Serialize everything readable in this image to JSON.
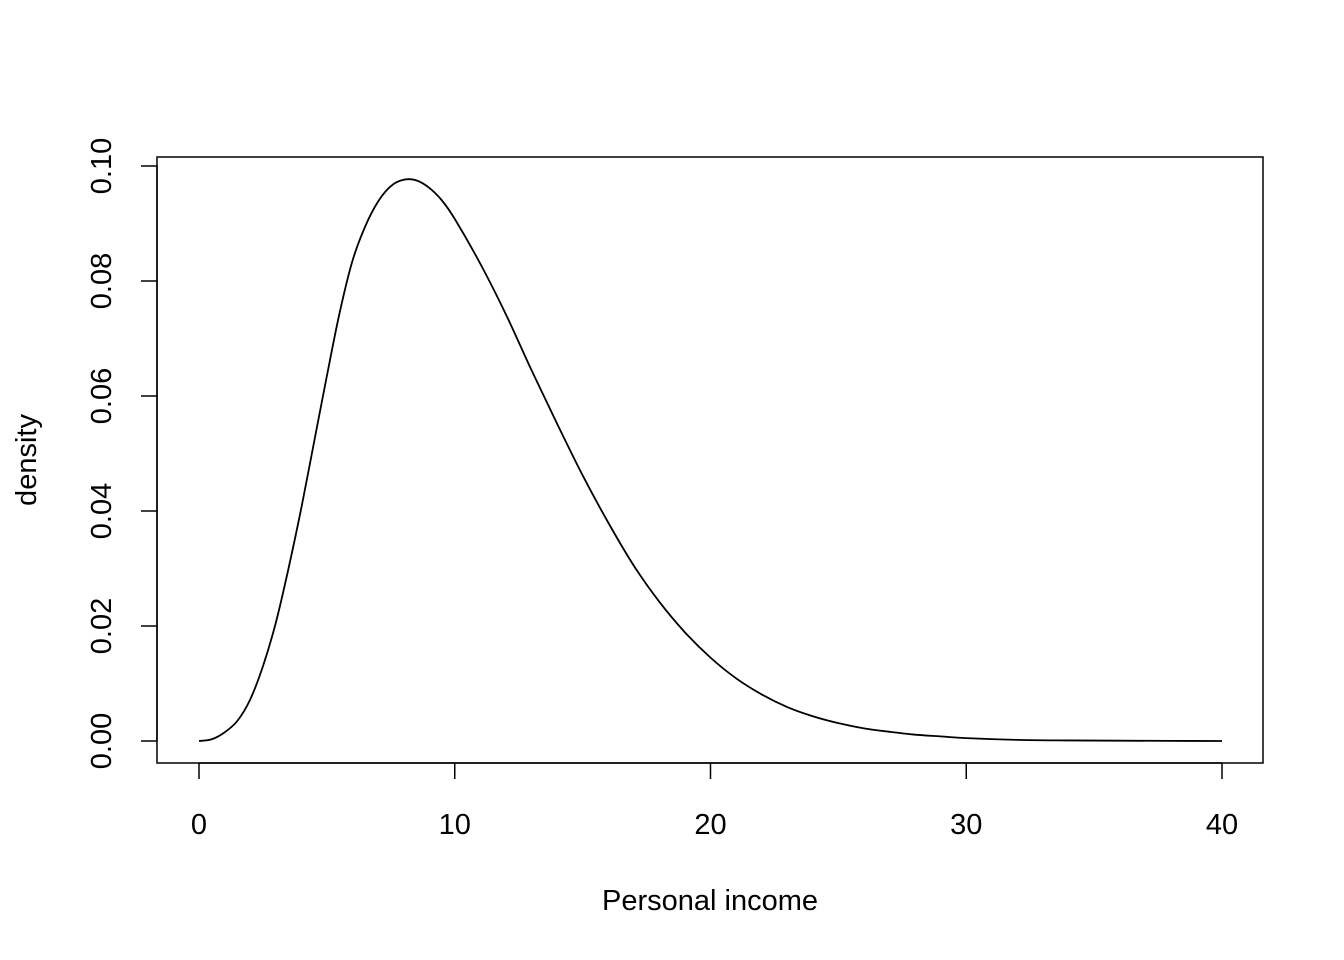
{
  "chart_data": {
    "type": "line",
    "title": "",
    "xlabel": "Personal income",
    "ylabel": "density",
    "xlim": [
      0,
      40
    ],
    "ylim": [
      0,
      0.1
    ],
    "x_ticks": [
      0,
      10,
      20,
      30,
      40
    ],
    "x_tick_labels": [
      "0",
      "10",
      "20",
      "30",
      "40"
    ],
    "y_ticks": [
      0,
      0.02,
      0.04,
      0.06,
      0.08,
      0.1
    ],
    "y_tick_labels": [
      "0.00",
      "0.02",
      "0.04",
      "0.06",
      "0.08",
      "0.10"
    ],
    "grid": false,
    "series": [
      {
        "color": "#000000",
        "x": [
          0,
          0.5,
          1,
          1.5,
          2,
          2.5,
          3,
          3.5,
          4,
          4.5,
          5,
          5.5,
          6,
          6.5,
          7,
          7.5,
          8,
          8.5,
          9,
          9.5,
          10,
          11,
          12,
          13,
          14,
          15,
          16,
          17,
          18,
          19,
          20,
          21,
          22,
          23,
          24,
          25,
          26,
          27,
          28,
          29,
          30,
          32,
          34,
          36,
          38,
          40
        ],
        "y": [
          0,
          0.0003,
          0.0015,
          0.0035,
          0.0072,
          0.013,
          0.0205,
          0.03,
          0.0405,
          0.052,
          0.0635,
          0.0745,
          0.0835,
          0.0895,
          0.0938,
          0.0965,
          0.0976,
          0.0975,
          0.0962,
          0.094,
          0.0908,
          0.083,
          0.0742,
          0.0645,
          0.0552,
          0.0462,
          0.038,
          0.0305,
          0.0242,
          0.0189,
          0.0145,
          0.0109,
          0.0081,
          0.0059,
          0.0043,
          0.0031,
          0.0022,
          0.0016,
          0.0011,
          0.0008,
          0.0005,
          0.0002,
          0.0001,
          5e-05,
          2e-05,
          0
        ]
      }
    ]
  }
}
